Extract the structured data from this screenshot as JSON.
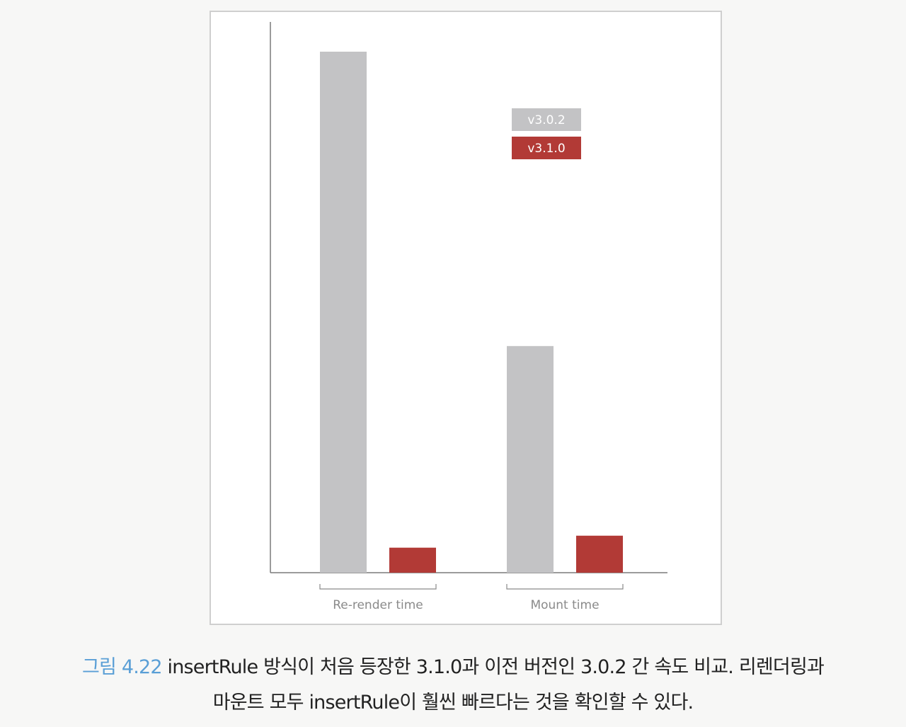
{
  "chart_data": {
    "type": "bar",
    "categories": [
      "Re-render time",
      "Mount time"
    ],
    "series": [
      {
        "name": "v3.0.2",
        "color": "#c3c3c5",
        "values": [
          100,
          43.5
        ]
      },
      {
        "name": "v3.1.0",
        "color": "#b23a36",
        "values": [
          4.8,
          7.1
        ]
      }
    ],
    "title": "",
    "xlabel": "",
    "ylabel": "",
    "ylim": [
      0,
      100
    ],
    "grid": false,
    "legend_position": "top-right"
  },
  "caption": {
    "figure_number": "그림 4.22",
    "line1": "insertRule 방식이 처음 등장한 3.1.0과 이전 버전인 3.0.2 간 속도 비교. 리렌더링과",
    "line2": "마운트 모두 insertRule이 훨씬 빠르다는 것을 확인할 수 있다."
  }
}
